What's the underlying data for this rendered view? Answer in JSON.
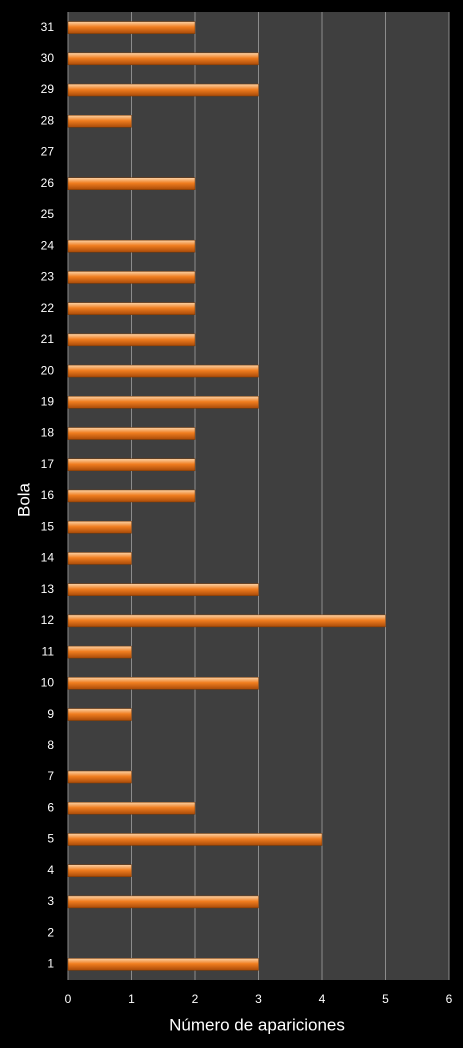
{
  "chart_data": {
    "type": "barh",
    "x_label": "Número de apariciones",
    "y_label": "Bola",
    "categories": [
      "1",
      "2",
      "3",
      "4",
      "5",
      "6",
      "7",
      "8",
      "9",
      "10",
      "11",
      "12",
      "13",
      "14",
      "15",
      "16",
      "17",
      "18",
      "19",
      "20",
      "21",
      "22",
      "23",
      "24",
      "25",
      "26",
      "27",
      "28",
      "29",
      "30",
      "31"
    ],
    "values": [
      3,
      0,
      3,
      1,
      4,
      2,
      1,
      0,
      1,
      3,
      1,
      5,
      3,
      1,
      1,
      2,
      2,
      2,
      3,
      3,
      2,
      2,
      2,
      2,
      0,
      2,
      0,
      1,
      3,
      3,
      2
    ],
    "color": "#f07d1f",
    "xlim": [
      0,
      6
    ],
    "xticks": [
      0,
      1,
      2,
      3,
      4,
      5,
      6
    ],
    "grid": true
  }
}
